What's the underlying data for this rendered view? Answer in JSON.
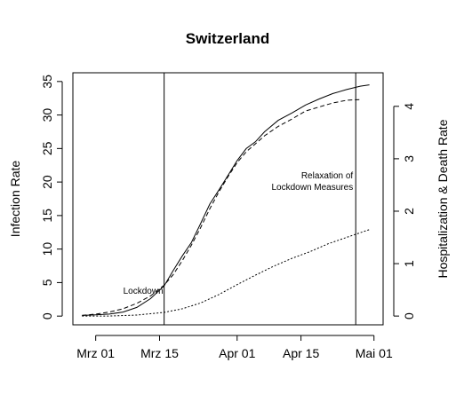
{
  "chart_data": {
    "type": "line",
    "title": "Switzerland",
    "ylabel_left": "Infection Rate",
    "ylabel_right": "Hospitalization & Death Rate",
    "xlabel": "",
    "x_ticks": [
      {
        "date": "2020-03-01",
        "label": "Mrz 01"
      },
      {
        "date": "2020-03-15",
        "label": "Mrz 15"
      },
      {
        "date": "2020-04-01",
        "label": "Apr 01"
      },
      {
        "date": "2020-04-15",
        "label": "Apr 15"
      },
      {
        "date": "2020-05-01",
        "label": "Mai 01"
      }
    ],
    "xlim": [
      "2020-02-25",
      "2020-05-03"
    ],
    "y_left_ticks": [
      0,
      5,
      10,
      15,
      20,
      25,
      30,
      35
    ],
    "y_left_lim": [
      -1.3,
      36.3
    ],
    "y_right_ticks": [
      0,
      1,
      2,
      3,
      4
    ],
    "y_right_lim": [
      -0.167,
      4.64
    ],
    "grid": false,
    "legend": "none",
    "vertical_lines": [
      {
        "date": "2020-03-16",
        "label": "Lockdown"
      },
      {
        "date": "2020-04-27",
        "label": "Relaxation of Lockdown Measures"
      }
    ],
    "annotation_lines": {
      "lockdown": [
        "Lockdown"
      ],
      "relaxation": [
        "Relaxation of",
        "Lockdown Measures"
      ]
    },
    "series": [
      {
        "axis": "left",
        "style": "solid",
        "points": [
          [
            "2020-02-27",
            0.1
          ],
          [
            "2020-03-01",
            0.2
          ],
          [
            "2020-03-04",
            0.3
          ],
          [
            "2020-03-07",
            0.6
          ],
          [
            "2020-03-10",
            1.3
          ],
          [
            "2020-03-13",
            2.6
          ],
          [
            "2020-03-16",
            4.5
          ],
          [
            "2020-03-18",
            6.8
          ],
          [
            "2020-03-20",
            9.0
          ],
          [
            "2020-03-22",
            11.0
          ],
          [
            "2020-03-24",
            13.8
          ],
          [
            "2020-03-26",
            16.7
          ],
          [
            "2020-03-28",
            18.8
          ],
          [
            "2020-03-30",
            21.0
          ],
          [
            "2020-04-01",
            23.2
          ],
          [
            "2020-04-03",
            25.0
          ],
          [
            "2020-04-05",
            26.0
          ],
          [
            "2020-04-07",
            27.5
          ],
          [
            "2020-04-10",
            29.2
          ],
          [
            "2020-04-13",
            30.3
          ],
          [
            "2020-04-16",
            31.5
          ],
          [
            "2020-04-19",
            32.4
          ],
          [
            "2020-04-22",
            33.2
          ],
          [
            "2020-04-25",
            33.8
          ],
          [
            "2020-04-28",
            34.3
          ],
          [
            "2020-04-30",
            34.5
          ]
        ]
      },
      {
        "axis": "left",
        "style": "dashed",
        "points": [
          [
            "2020-02-27",
            0.1
          ],
          [
            "2020-03-01",
            0.3
          ],
          [
            "2020-03-04",
            0.6
          ],
          [
            "2020-03-07",
            1.1
          ],
          [
            "2020-03-10",
            1.9
          ],
          [
            "2020-03-13",
            3.0
          ],
          [
            "2020-03-16",
            4.6
          ],
          [
            "2020-03-18",
            6.2
          ],
          [
            "2020-03-20",
            8.3
          ],
          [
            "2020-03-22",
            10.6
          ],
          [
            "2020-03-24",
            13.2
          ],
          [
            "2020-03-26",
            16.0
          ],
          [
            "2020-03-28",
            18.5
          ],
          [
            "2020-03-30",
            20.8
          ],
          [
            "2020-04-01",
            22.9
          ],
          [
            "2020-04-03",
            24.5
          ],
          [
            "2020-04-05",
            25.7
          ],
          [
            "2020-04-07",
            26.9
          ],
          [
            "2020-04-10",
            28.3
          ],
          [
            "2020-04-13",
            29.4
          ],
          [
            "2020-04-16",
            30.6
          ],
          [
            "2020-04-19",
            31.2
          ],
          [
            "2020-04-22",
            31.8
          ],
          [
            "2020-04-25",
            32.2
          ],
          [
            "2020-04-28",
            32.3
          ]
        ]
      },
      {
        "axis": "right",
        "style": "dotted",
        "points": [
          [
            "2020-02-27",
            0.0
          ],
          [
            "2020-03-04",
            0.0
          ],
          [
            "2020-03-10",
            0.02
          ],
          [
            "2020-03-16",
            0.07
          ],
          [
            "2020-03-20",
            0.14
          ],
          [
            "2020-03-24",
            0.25
          ],
          [
            "2020-03-28",
            0.41
          ],
          [
            "2020-04-01",
            0.6
          ],
          [
            "2020-04-05",
            0.78
          ],
          [
            "2020-04-09",
            0.95
          ],
          [
            "2020-04-13",
            1.1
          ],
          [
            "2020-04-17",
            1.23
          ],
          [
            "2020-04-21",
            1.38
          ],
          [
            "2020-04-25",
            1.5
          ],
          [
            "2020-04-30",
            1.65
          ]
        ]
      }
    ]
  }
}
